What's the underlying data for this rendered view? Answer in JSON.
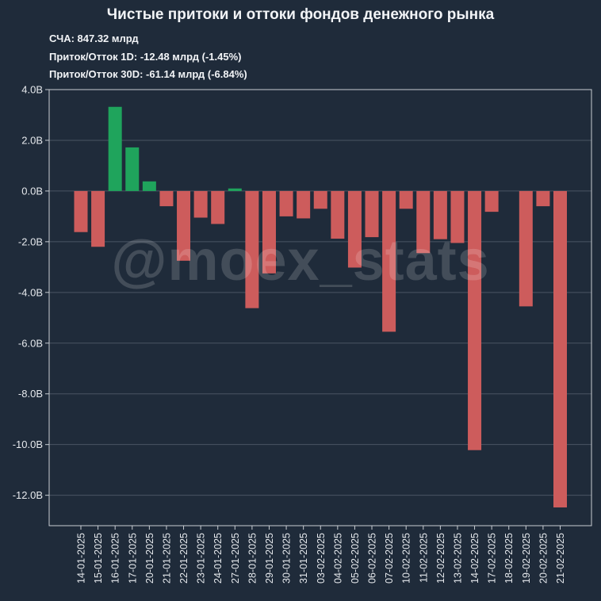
{
  "header": {
    "title": "Чистые притоки и оттоки фондов денежного рынка",
    "aum": "СЧА: 847.32 млрд",
    "flow_1d": "Приток/Отток 1D: -12.48 млрд (-1.45%)",
    "flow_30d": "Приток/Отток 30D: -61.14 млрд (-6.84%)"
  },
  "watermark": "@moex_stats",
  "colors": {
    "background": "#1f2b3a",
    "positive": "#1fa45c",
    "negative": "#cd5c5c",
    "grid": "#4a5563",
    "axis": "#c8cdd3"
  },
  "chart_data": {
    "type": "bar",
    "title": "Чистые притоки и оттоки фондов денежного рынка",
    "xlabel": "",
    "ylabel": "",
    "ylim": [
      -13.2,
      4.0
    ],
    "yticks": [
      4.0,
      2.0,
      0.0,
      -2.0,
      -4.0,
      -6.0,
      -8.0,
      -10.0,
      -12.0
    ],
    "ytick_labels": [
      "4.0B",
      "2.0B",
      "0.0B",
      "-2.0B",
      "-4.0B",
      "-6.0B",
      "-8.0B",
      "-10.0B",
      "-12.0B"
    ],
    "grid": true,
    "categories": [
      "14-01-2025",
      "15-01-2025",
      "16-01-2025",
      "17-01-2025",
      "20-01-2025",
      "21-01-2025",
      "22-01-2025",
      "23-01-2025",
      "24-01-2025",
      "27-01-2025",
      "28-01-2025",
      "29-01-2025",
      "30-01-2025",
      "31-01-2025",
      "03-02-2025",
      "04-02-2025",
      "05-02-2025",
      "06-02-2025",
      "07-02-2025",
      "10-02-2025",
      "11-02-2025",
      "12-02-2025",
      "13-02-2025",
      "14-02-2025",
      "17-02-2025",
      "18-02-2025",
      "19-02-2025",
      "20-02-2025",
      "21-02-2025"
    ],
    "values": [
      -1.62,
      -2.2,
      3.32,
      1.72,
      0.38,
      -0.6,
      -2.75,
      -1.05,
      -1.3,
      0.1,
      -4.62,
      -3.25,
      -1.0,
      -1.08,
      -0.7,
      -1.88,
      -3.02,
      -1.82,
      -5.55,
      -0.7,
      -2.45,
      -1.9,
      -2.05,
      -10.22,
      -0.82,
      0.0,
      -4.55,
      -0.6,
      -12.48
    ]
  }
}
